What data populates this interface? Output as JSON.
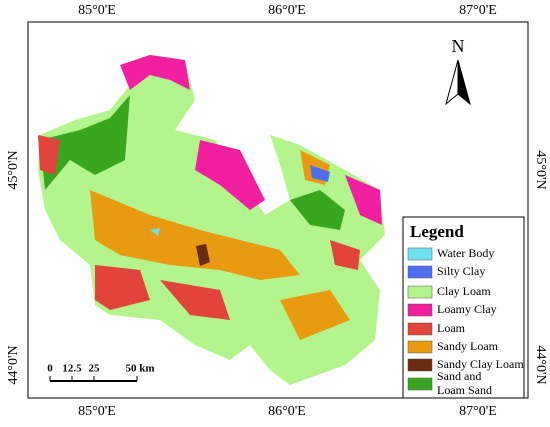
{
  "map": {
    "top_labels": [
      "85°0'E",
      "86°0'E",
      "87°0'E"
    ],
    "bottom_labels": [
      "85°0'E",
      "86°0'E",
      "87°0'E"
    ],
    "left_labels": [
      "45°0'N",
      "44°0'N"
    ],
    "right_labels": [
      "45°0'N",
      "44°0'N"
    ],
    "north": "N",
    "scale": {
      "labels": [
        "0",
        "12.5",
        "25",
        "50 km"
      ]
    },
    "legend": {
      "title": "Legend",
      "items": [
        {
          "lines": [
            "Water Body"
          ],
          "color": "#6fe0f0"
        },
        {
          "lines": [
            "Silty Clay"
          ],
          "color": "#4f6ff0"
        },
        {
          "lines": [
            "Clay Loam"
          ],
          "color": "#b3f58c"
        },
        {
          "lines": [
            "Loamy Clay"
          ],
          "color": "#f020a0"
        },
        {
          "lines": [
            "Loam"
          ],
          "color": "#e0443a"
        },
        {
          "lines": [
            "Sandy Loam"
          ],
          "color": "#e89a10"
        },
        {
          "lines": [
            "Sandy Clay Loam"
          ],
          "color": "#6b2b10"
        },
        {
          "lines": [
            "Sand and",
            "Loam Sand"
          ],
          "color": "#3aa51f"
        }
      ]
    }
  }
}
